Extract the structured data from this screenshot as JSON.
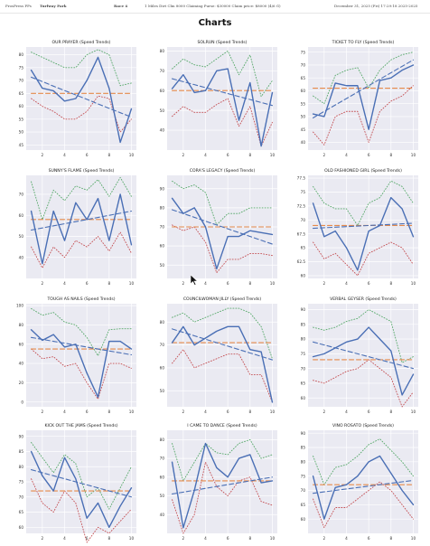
{
  "header": {
    "app": "ProsPress PPs",
    "track": "Turfway Park",
    "race": "Race 4",
    "conditions": "1 Miles Dirt Clm 8000 Claiming Purse: $30000 Claim price: $8000 (4/6 G)",
    "date": "December 31, 2025 (Fri) 17:29:18 2025-2025"
  },
  "page_title": "Charts",
  "colors": {
    "actual": "#4a6fb5",
    "trend": "#4a6fb5",
    "mean": "#e5894a",
    "upper": "#55a868",
    "lower": "#c44e52",
    "plot_bg": "#eaeaf2",
    "grid": "#ffffff"
  },
  "chart_data": [
    {
      "type": "line",
      "title": "OUR PRAYER (Speed Trends)",
      "x": [
        1,
        2,
        3,
        4,
        5,
        6,
        7,
        8,
        9,
        10
      ],
      "xticks": [
        2,
        4,
        6,
        8,
        10
      ],
      "ylim": [
        43,
        83
      ],
      "yticks": [
        45,
        50,
        55,
        60,
        65,
        70,
        75,
        80
      ],
      "series": [
        {
          "values": [
            74,
            67,
            66,
            62,
            63,
            70,
            79,
            67,
            46,
            59
          ]
        },
        {
          "values": [
            71.3,
            69.6,
            67.8,
            66.1,
            64.4,
            62.7,
            60.9,
            59.2,
            57.5,
            55.8
          ]
        },
        {
          "values": [
            65,
            65,
            65,
            65,
            65,
            65,
            65,
            65,
            65,
            65
          ]
        },
        {
          "values": [
            81,
            79,
            77,
            75,
            75,
            80,
            82,
            80,
            68,
            69
          ]
        },
        {
          "values": [
            63,
            60,
            58,
            55,
            55,
            58,
            64,
            63,
            50,
            55
          ]
        }
      ]
    },
    {
      "type": "line",
      "title": "SOLRUN (Speed Trends)",
      "x": [
        1,
        2,
        3,
        4,
        5,
        6,
        7,
        8,
        9,
        10
      ],
      "xticks": [
        2,
        4,
        6,
        8,
        10
      ],
      "ylim": [
        30,
        82
      ],
      "yticks": [
        40,
        50,
        60,
        70,
        80
      ],
      "series": [
        {
          "values": [
            61,
            68,
            59,
            60,
            70,
            71,
            45,
            64,
            32,
            59
          ]
        },
        {
          "values": [
            66,
            64.5,
            63,
            61.5,
            60,
            58.5,
            57,
            55.5,
            54,
            52.5
          ]
        },
        {
          "values": [
            60,
            60,
            60,
            60,
            60,
            60,
            60,
            60,
            60,
            60
          ]
        },
        {
          "values": [
            71,
            76,
            73,
            72,
            76,
            80,
            68,
            78,
            57,
            65
          ]
        },
        {
          "values": [
            47,
            52,
            49,
            49,
            53,
            56,
            42,
            52,
            32,
            44
          ]
        }
      ]
    },
    {
      "type": "line",
      "title": "TICKET TO FLY (Speed Trends)",
      "x": [
        1,
        2,
        3,
        4,
        5,
        6,
        7,
        8,
        9,
        10
      ],
      "xticks": [
        2,
        4,
        6,
        8,
        10
      ],
      "ylim": [
        37,
        77
      ],
      "yticks": [
        40,
        45,
        50,
        55,
        60,
        65,
        70,
        75
      ],
      "series": [
        {
          "values": [
            51,
            50,
            63,
            62,
            62,
            45,
            64,
            65,
            68,
            70
          ]
        },
        {
          "values": [
            49.5,
            52,
            54.5,
            57,
            59.5,
            62,
            64.5,
            67,
            69.5,
            72
          ]
        },
        {
          "values": [
            61,
            61,
            61,
            61,
            61,
            61,
            61,
            61,
            61,
            61
          ]
        },
        {
          "values": [
            58,
            55,
            66,
            68,
            69,
            61,
            68,
            72,
            74,
            75
          ]
        },
        {
          "values": [
            44,
            39,
            50,
            52,
            52,
            40,
            52,
            56,
            58,
            62
          ]
        }
      ]
    },
    {
      "type": "line",
      "title": "SUNNY'S FLAME (Speed Trends)",
      "x": [
        1,
        2,
        3,
        4,
        5,
        6,
        7,
        8,
        9,
        10
      ],
      "xticks": [
        2,
        4,
        6,
        8,
        10
      ],
      "ylim": [
        30,
        79
      ],
      "yticks": [
        40,
        50,
        60,
        70
      ],
      "series": [
        {
          "values": [
            62,
            37,
            62,
            48,
            66,
            58,
            68,
            48,
            70,
            46
          ]
        },
        {
          "values": [
            53,
            54,
            55,
            56,
            57,
            58,
            59,
            60,
            61,
            62
          ]
        },
        {
          "values": [
            58,
            58,
            58,
            58,
            58,
            58,
            58,
            58,
            58,
            58
          ]
        },
        {
          "values": [
            76,
            58,
            72,
            67,
            74,
            72,
            77,
            69,
            78,
            69
          ]
        },
        {
          "values": [
            45,
            35,
            45,
            40,
            48,
            45,
            50,
            43,
            52,
            42
          ]
        }
      ]
    },
    {
      "type": "line",
      "title": "CORA'S LEGACY (Speed Trends)",
      "x": [
        1,
        2,
        3,
        4,
        5,
        6,
        7,
        8,
        9,
        10
      ],
      "xticks": [
        2,
        4,
        6,
        8,
        10
      ],
      "ylim": [
        43,
        97
      ],
      "yticks": [
        50,
        60,
        70,
        80,
        90
      ],
      "series": [
        {
          "values": [
            85,
            77,
            80,
            70,
            48,
            65,
            65,
            68,
            67,
            66
          ]
        },
        {
          "values": [
            79,
            77,
            75,
            73,
            71,
            69,
            67,
            65,
            63,
            61
          ]
        },
        {
          "values": [
            70,
            70,
            70,
            70,
            70,
            70,
            70,
            70,
            70,
            70
          ]
        },
        {
          "values": [
            94,
            90,
            92,
            88,
            71,
            77,
            77,
            80,
            80,
            80
          ]
        },
        {
          "values": [
            71,
            68,
            70,
            62,
            46,
            53,
            53,
            56,
            56,
            55
          ]
        }
      ]
    },
    {
      "type": "line",
      "title": "OLD FASHIONED GIRL (Speed Trends)",
      "x": [
        1,
        2,
        3,
        4,
        5,
        6,
        7,
        8,
        9,
        10
      ],
      "xticks": [
        2,
        4,
        6,
        8,
        10
      ],
      "ylim": [
        59.5,
        78
      ],
      "yticks": [
        60,
        62.5,
        65,
        67.5,
        70,
        72.5,
        75,
        77.5
      ],
      "series": [
        {
          "values": [
            73,
            67,
            68,
            65,
            61,
            68,
            69,
            74,
            72,
            67
          ]
        },
        {
          "values": [
            68.5,
            68.6,
            68.7,
            68.8,
            68.9,
            69,
            69.1,
            69.2,
            69.3,
            69.4
          ]
        },
        {
          "values": [
            69,
            69,
            69,
            69,
            69,
            69,
            69,
            69,
            69,
            69
          ]
        },
        {
          "values": [
            76,
            73,
            72,
            72,
            69,
            73,
            74,
            77,
            76,
            73
          ]
        },
        {
          "values": [
            66,
            63,
            64,
            62,
            60,
            64,
            65,
            66,
            65,
            62
          ]
        }
      ]
    },
    {
      "type": "line",
      "title": "TOUGH AS NAILS (Speed Trends)",
      "x": [
        1,
        2,
        3,
        4,
        5,
        6,
        7,
        8,
        9,
        10
      ],
      "xticks": [
        2,
        4,
        6,
        8,
        10
      ],
      "ylim": [
        -5,
        102
      ],
      "yticks": [
        0,
        20,
        40,
        60,
        80,
        100
      ],
      "series": [
        {
          "values": [
            75,
            64,
            70,
            57,
            60,
            30,
            5,
            63,
            63,
            55
          ]
        },
        {
          "values": [
            67,
            65,
            63,
            61,
            59,
            57,
            55,
            53,
            51,
            49
          ]
        },
        {
          "values": [
            55,
            55,
            55,
            55,
            55,
            55,
            55,
            55,
            55,
            55
          ]
        },
        {
          "values": [
            97,
            90,
            93,
            83,
            80,
            67,
            48,
            75,
            76,
            76
          ]
        },
        {
          "values": [
            55,
            45,
            47,
            37,
            40,
            20,
            3,
            40,
            40,
            35
          ]
        }
      ]
    },
    {
      "type": "line",
      "title": "COUNCILWOMAN JILLY (Speed Trends)",
      "x": [
        1,
        2,
        3,
        4,
        5,
        6,
        7,
        8,
        9,
        10
      ],
      "xticks": [
        2,
        4,
        6,
        8,
        10
      ],
      "ylim": [
        43,
        88
      ],
      "yticks": [
        50,
        60,
        70,
        80
      ],
      "series": [
        {
          "values": [
            71,
            78,
            70,
            73,
            76,
            78,
            78,
            68,
            67,
            45
          ]
        },
        {
          "values": [
            77,
            75.5,
            74,
            72.5,
            71,
            69.5,
            68,
            66.5,
            65,
            63.5
          ]
        },
        {
          "values": [
            71,
            71,
            71,
            71,
            71,
            71,
            71,
            71,
            71,
            71
          ]
        },
        {
          "values": [
            82,
            84,
            80,
            82,
            84,
            86,
            86,
            84,
            78,
            64
          ]
        },
        {
          "values": [
            62,
            68,
            60,
            62,
            64,
            66,
            66,
            57,
            57,
            45
          ]
        }
      ]
    },
    {
      "type": "line",
      "title": "VERBAL GEYSER (Speed Trends)",
      "x": [
        1,
        2,
        3,
        4,
        5,
        6,
        7,
        8,
        9,
        10
      ],
      "xticks": [
        2,
        4,
        6,
        8,
        10
      ],
      "ylim": [
        57,
        92
      ],
      "yticks": [
        60,
        65,
        70,
        75,
        80,
        85,
        90
      ],
      "series": [
        {
          "values": [
            74,
            75,
            77,
            79,
            80,
            84,
            80,
            76,
            61,
            68
          ]
        },
        {
          "values": [
            79,
            78,
            77,
            76,
            75,
            74,
            73,
            72,
            71,
            70
          ]
        },
        {
          "values": [
            73,
            73,
            73,
            73,
            73,
            73,
            73,
            73,
            73,
            73
          ]
        },
        {
          "values": [
            84,
            83,
            84,
            86,
            87,
            90,
            88,
            86,
            72,
            74
          ]
        },
        {
          "values": [
            66,
            65,
            67,
            69,
            70,
            73,
            70,
            67,
            57,
            62
          ]
        }
      ]
    },
    {
      "type": "line",
      "title": "KICK OUT THE JAMS (Speed Trends)",
      "x": [
        1,
        2,
        3,
        4,
        5,
        6,
        7,
        8,
        9,
        10
      ],
      "xticks": [
        2,
        4,
        6,
        8,
        10
      ],
      "ylim": [
        58,
        92
      ],
      "yticks": [
        60,
        65,
        70,
        75,
        80,
        85,
        90
      ],
      "series": [
        {
          "values": [
            85,
            77,
            72,
            83,
            76,
            63,
            68,
            60,
            67,
            73
          ]
        },
        {
          "values": [
            79,
            78,
            77,
            76,
            75,
            74,
            73,
            72,
            71,
            70
          ]
        },
        {
          "values": [
            72,
            72,
            72,
            72,
            72,
            72,
            72,
            72,
            72,
            72
          ]
        },
        {
          "values": [
            88,
            83,
            78,
            84,
            81,
            70,
            73,
            66,
            73,
            80
          ]
        },
        {
          "values": [
            76,
            68,
            65,
            72,
            68,
            55,
            60,
            58,
            62,
            66
          ]
        }
      ]
    },
    {
      "type": "line",
      "title": "I CAME TO DANCE (Speed Trends)",
      "x": [
        1,
        2,
        3,
        4,
        5,
        6,
        7,
        8,
        9,
        10
      ],
      "xticks": [
        2,
        4,
        6,
        8,
        10
      ],
      "ylim": [
        30,
        85
      ],
      "yticks": [
        40,
        50,
        60,
        70,
        80
      ],
      "series": [
        {
          "values": [
            68,
            33,
            53,
            78,
            65,
            60,
            70,
            72,
            57,
            58
          ]
        },
        {
          "values": [
            51,
            52,
            53,
            54,
            55,
            56,
            57,
            58,
            59,
            60
          ]
        },
        {
          "values": [
            58,
            58,
            58,
            58,
            58,
            58,
            58,
            58,
            58,
            58
          ]
        },
        {
          "values": [
            78,
            58,
            68,
            78,
            73,
            72,
            78,
            80,
            70,
            72
          ]
        },
        {
          "values": [
            48,
            30,
            40,
            68,
            55,
            50,
            58,
            60,
            47,
            45
          ]
        }
      ]
    },
    {
      "type": "line",
      "title": "VINO ROSATO (Speed Trends)",
      "x": [
        1,
        2,
        3,
        4,
        5,
        6,
        7,
        8,
        9,
        10
      ],
      "xticks": [
        2,
        4,
        6,
        8,
        10
      ],
      "ylim": [
        55,
        91
      ],
      "yticks": [
        60,
        65,
        70,
        75,
        80,
        85,
        90
      ],
      "series": [
        {
          "values": [
            75,
            60,
            71,
            72,
            75,
            80,
            82,
            76,
            70,
            65
          ]
        },
        {
          "values": [
            69,
            69.5,
            70,
            70.5,
            71,
            71.5,
            72,
            72.5,
            73,
            73.5
          ]
        },
        {
          "values": [
            72,
            72,
            72,
            72,
            72,
            72,
            72,
            72,
            72,
            72
          ]
        },
        {
          "values": [
            82,
            72,
            78,
            79,
            82,
            86,
            88,
            84,
            80,
            75
          ]
        },
        {
          "values": [
            67,
            57,
            64,
            64,
            67,
            70,
            73,
            70,
            65,
            60
          ]
        }
      ]
    }
  ]
}
